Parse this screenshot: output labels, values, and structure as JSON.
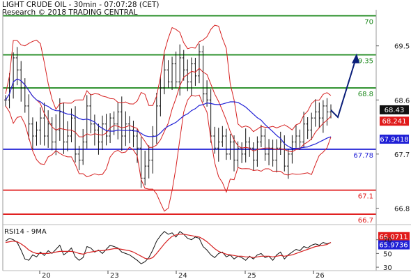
{
  "header": {
    "title": "LIGHT CRUDE OIL - 30min - 07:07:28 (CET)",
    "copyright": "Research © 2018 TRADING CENTRAL"
  },
  "chart_data": [
    {
      "type": "line",
      "title": "LIGHT CRUDE OIL - 30min",
      "x_categories": [
        "20",
        "23",
        "24",
        "25",
        "26"
      ],
      "y_ticks": [
        66.8,
        67.7,
        68.6,
        69.5
      ],
      "ylim": [
        66.7,
        70
      ],
      "grid": false,
      "horizontal_levels": [
        {
          "label": "70",
          "value": 70,
          "color": "#1f8a1f"
        },
        {
          "label": "69.35",
          "value": 69.35,
          "color": "#1f8a1f"
        },
        {
          "label": "68.8",
          "value": 68.8,
          "color": "#1f8a1f"
        },
        {
          "label": "67.78",
          "value": 67.78,
          "color": "#1f1fd6"
        },
        {
          "label": "67.1",
          "value": 67.1,
          "color": "#e01b1b"
        },
        {
          "label": "66.7",
          "value": 66.7,
          "color": "#e01b1b"
        }
      ],
      "value_badges": [
        {
          "label": "68.43",
          "color": "#111111"
        },
        {
          "label": "68.241",
          "color": "#e01b1b"
        },
        {
          "label": "67.9418",
          "color": "#1f1fd6"
        }
      ],
      "close_series": [
        68.6,
        68.8,
        69.3,
        69.1,
        68.8,
        68.5,
        68.2,
        68.0,
        68.1,
        68.3,
        68.0,
        68.2,
        67.9,
        68.1,
        68.4,
        67.9,
        68.0,
        68.3,
        67.7,
        67.6,
        67.9,
        68.5,
        68.2,
        68.1,
        67.9,
        68.2,
        68.0,
        68.3,
        68.2,
        68.4,
        68.0,
        68.2,
        68.1,
        68.0,
        67.8,
        67.3,
        67.5,
        67.6,
        68.0,
        68.5,
        68.8,
        69.1,
        68.9,
        69.2,
        68.9,
        69.3,
        69.1,
        68.9,
        69.2,
        69.0,
        69.4,
        68.7,
        68.6,
        68.0,
        67.8,
        67.9,
        68.0,
        67.7,
        67.9,
        67.6,
        67.8,
        67.7,
        67.9,
        67.8,
        67.6,
        67.9,
        68.0,
        67.7,
        67.8,
        67.6,
        67.8,
        67.9,
        67.5,
        67.7,
        67.9,
        68.0,
        67.9,
        68.2,
        68.1,
        68.3,
        68.4,
        68.3,
        68.5,
        68.4,
        68.43
      ],
      "projection": {
        "from": 68.43,
        "to": 69.35
      }
    },
    {
      "type": "line",
      "title": "RSI14 - 9MA",
      "y_ticks": [
        30,
        50,
        70
      ],
      "ylim": [
        25,
        90
      ],
      "value_badges": [
        {
          "label": "66.0711",
          "color": "#e01b1b"
        },
        {
          "label": "65.9736",
          "color": "#1f1fd6"
        }
      ],
      "rsi_series": [
        68,
        72,
        70,
        66,
        55,
        42,
        40,
        48,
        45,
        52,
        47,
        54,
        50,
        56,
        62,
        48,
        52,
        58,
        45,
        40,
        44,
        60,
        58,
        52,
        55,
        50,
        56,
        62,
        60,
        58,
        52,
        50,
        48,
        44,
        40,
        35,
        38,
        44,
        55,
        68,
        76,
        82,
        78,
        80,
        74,
        82,
        78,
        72,
        70,
        74,
        72,
        60,
        55,
        48,
        44,
        50,
        52,
        45,
        48,
        42,
        46,
        44,
        40,
        46,
        42,
        48,
        50,
        44,
        46,
        40,
        48,
        52,
        42,
        48,
        52,
        56,
        54,
        60,
        58,
        62,
        64,
        62,
        66,
        64,
        66
      ],
      "ma_series": [
        66,
        67,
        68,
        67,
        64,
        60,
        55,
        52,
        50,
        50,
        50,
        50,
        51,
        52,
        53,
        53,
        53,
        53,
        52,
        50,
        49,
        51,
        52,
        53,
        54,
        54,
        55,
        56,
        57,
        57,
        56,
        55,
        54,
        52,
        49,
        46,
        43,
        42,
        44,
        50,
        57,
        64,
        70,
        75,
        77,
        78,
        78,
        77,
        76,
        75,
        74,
        71,
        67,
        62,
        57,
        53,
        51,
        49,
        48,
        47,
        46,
        46,
        45,
        45,
        44,
        45,
        46,
        46,
        46,
        45,
        46,
        47,
        46,
        47,
        48,
        50,
        52,
        54,
        56,
        58,
        60,
        61,
        62,
        63,
        66
      ]
    }
  ]
}
